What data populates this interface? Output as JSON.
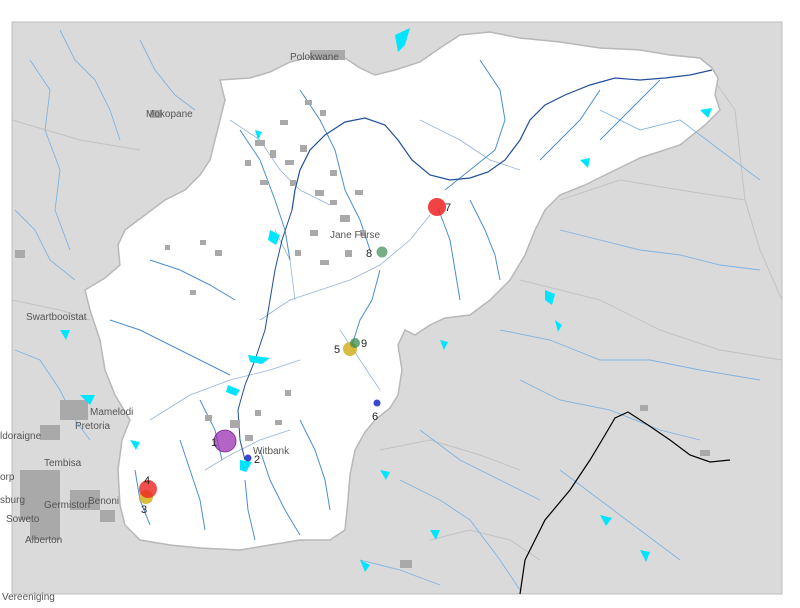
{
  "colors": {
    "outside": "#dadada",
    "catchment": "#ffffff",
    "river": "#4a8fd0",
    "river_main": "#1f4f9a",
    "subbasin": "#7aa0cc",
    "water": "#00e5ff",
    "urban": "#a9a9a9",
    "border": "#000000"
  },
  "places": [
    {
      "id": "polokwane",
      "name": "Polokwane"
    },
    {
      "id": "mokopane",
      "name": "Mokopane"
    },
    {
      "id": "jane-furse",
      "name": "Jane Furse"
    },
    {
      "id": "swartbooistat",
      "name": "Swartbooistat"
    },
    {
      "id": "mamelodi",
      "name": "Mamelodi"
    },
    {
      "id": "pretoria",
      "name": "Pretoria"
    },
    {
      "id": "doraigne",
      "name": "ldoraigne"
    },
    {
      "id": "tembisa",
      "name": "Tembisa"
    },
    {
      "id": "benoni",
      "name": "Benoni"
    },
    {
      "id": "germiston",
      "name": "Germiston"
    },
    {
      "id": "soweto",
      "name": "Soweto"
    },
    {
      "id": "alberton",
      "name": "Alberton"
    },
    {
      "id": "vereeniging",
      "name": "Vereeniging"
    },
    {
      "id": "witbank",
      "name": "Witbank"
    },
    {
      "id": "orp",
      "name": "orp"
    },
    {
      "id": "sburg",
      "name": "sburg"
    }
  ],
  "markers": [
    {
      "label": "1",
      "color": "#9b30b0"
    },
    {
      "label": "2",
      "color": "#2233cc"
    },
    {
      "label": "3",
      "color": "#d4b020"
    },
    {
      "label": "4",
      "color": "#ee2222"
    },
    {
      "label": "5",
      "color": "#d4b020"
    },
    {
      "label": "6",
      "color": "#2233cc"
    },
    {
      "label": "7",
      "color": "#ee2222"
    },
    {
      "label": "8",
      "color": "#3a8a50"
    },
    {
      "label": "9",
      "color": "#3a8a50"
    }
  ]
}
